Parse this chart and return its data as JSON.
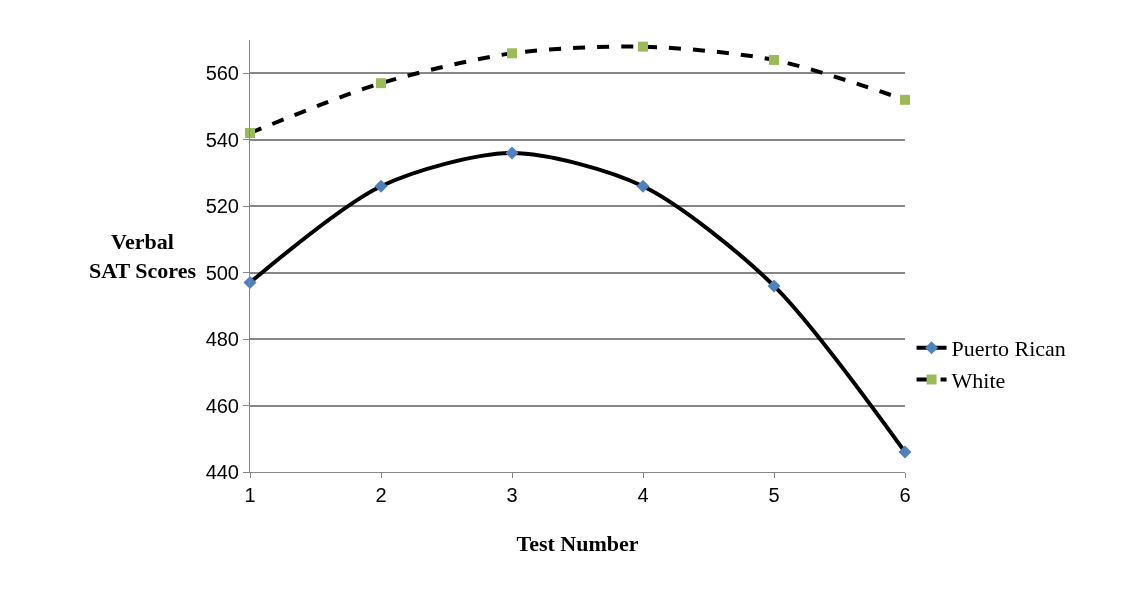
{
  "chart_data": {
    "type": "line",
    "xlabel": "Test Number",
    "ylabel": "Verbal\nSAT Scores",
    "x": [
      1,
      2,
      3,
      4,
      5,
      6
    ],
    "series": [
      {
        "name": "Puerto Rican",
        "color": "#4f81bd",
        "marker": "diamond",
        "line_style": "solid",
        "values": [
          497,
          526,
          536,
          526,
          496,
          446
        ]
      },
      {
        "name": "White",
        "color": "#9bbb59",
        "marker": "square",
        "line_style": "dashed",
        "values": [
          542,
          557,
          566,
          568,
          564,
          552
        ]
      }
    ],
    "xlim": [
      1,
      6
    ],
    "xticks": [
      1,
      2,
      3,
      4,
      5,
      6
    ],
    "ylim": [
      440,
      570
    ],
    "yticks": [
      440,
      460,
      480,
      500,
      520,
      540,
      560
    ],
    "grid": "y",
    "legend": "right"
  }
}
